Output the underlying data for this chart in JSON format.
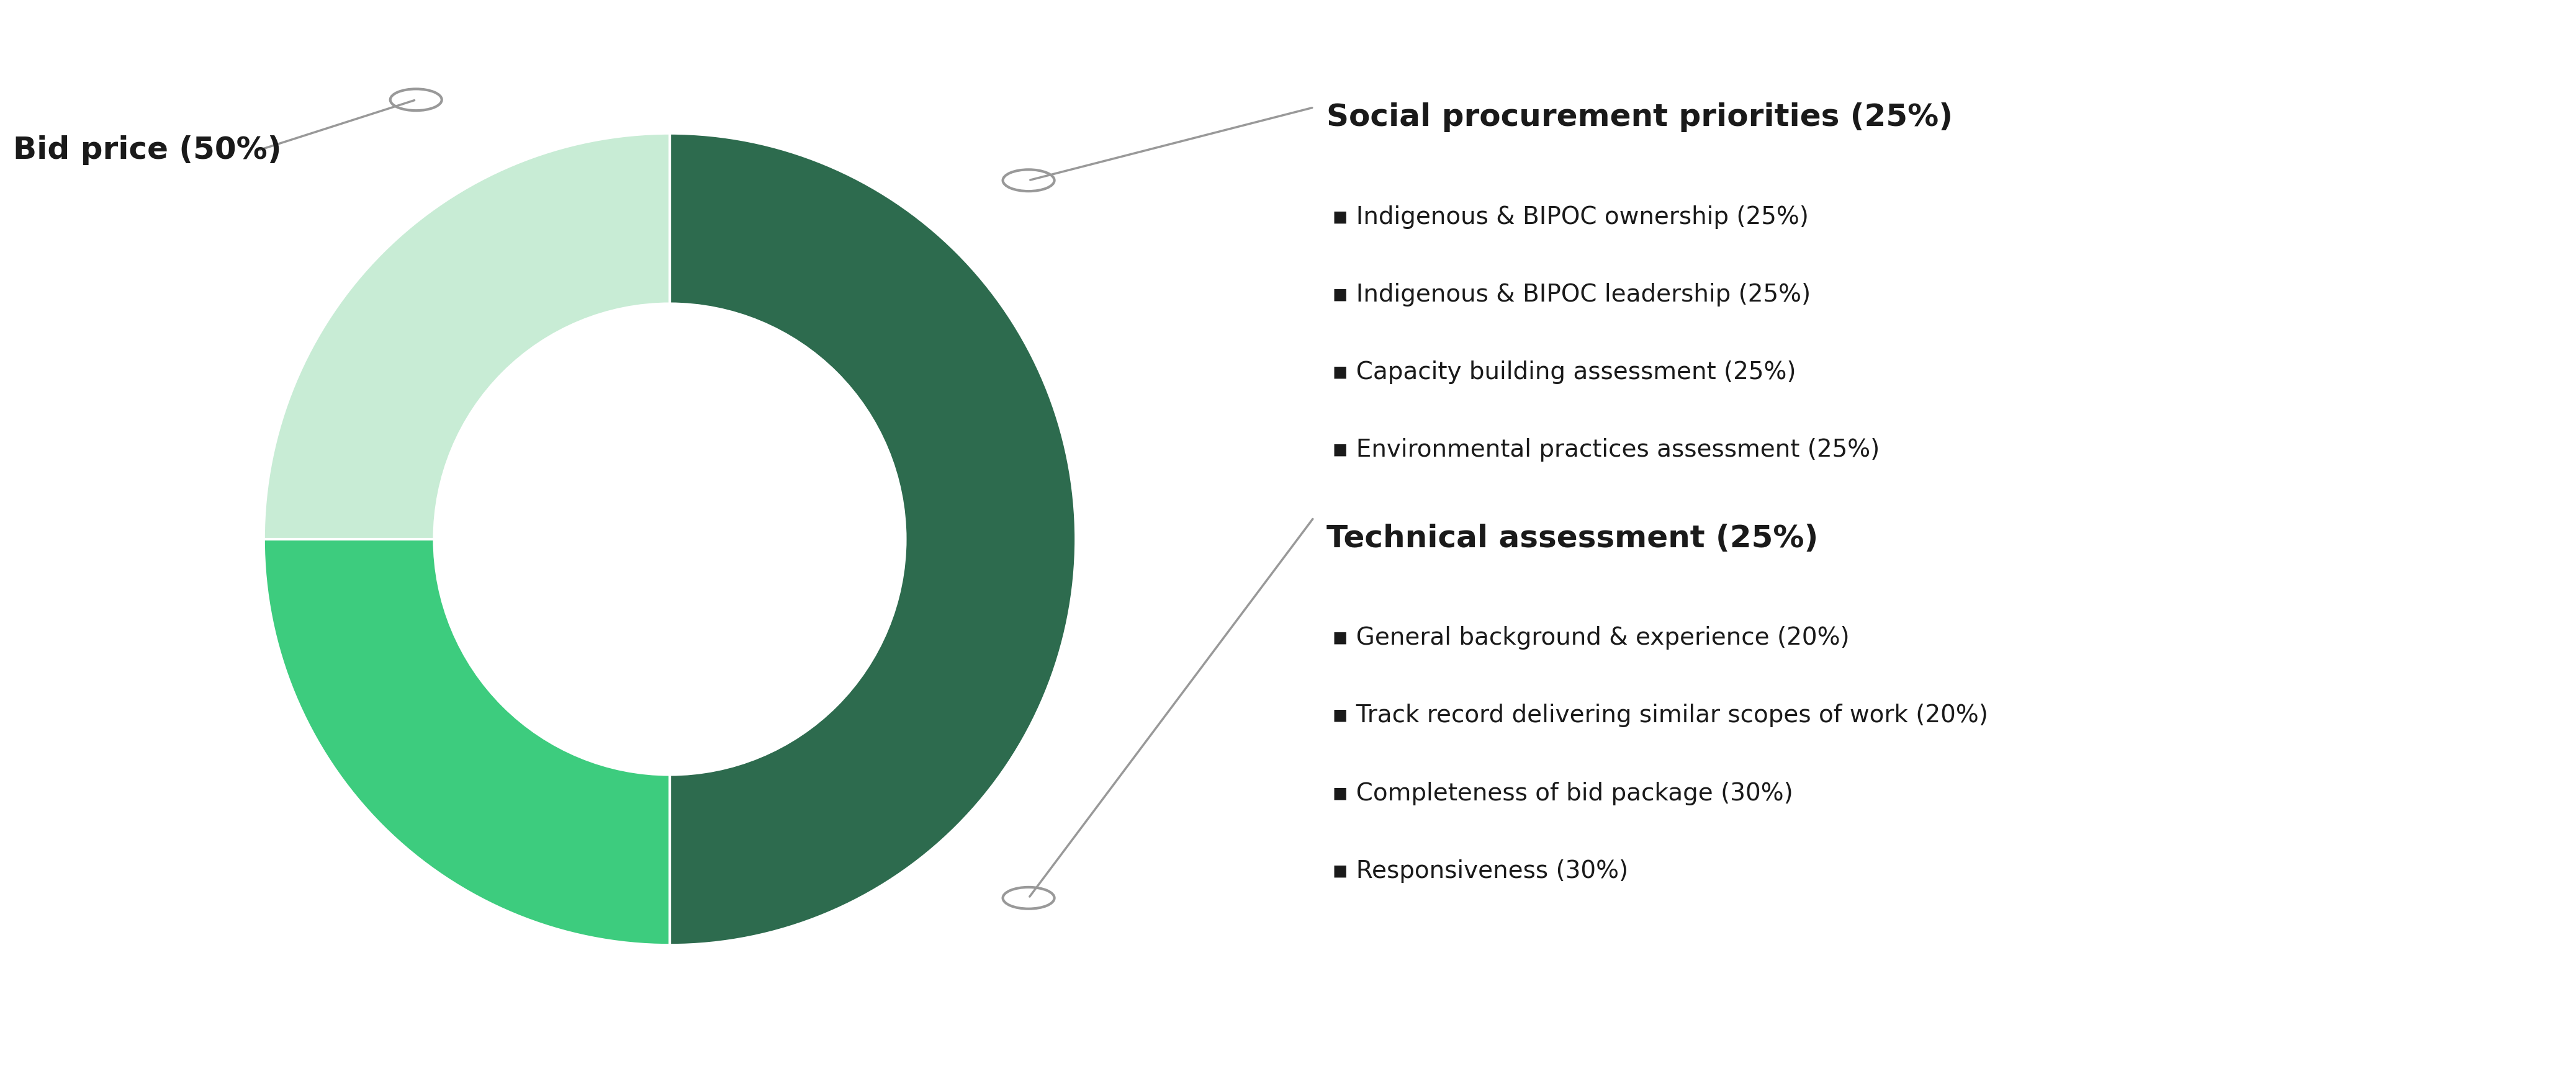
{
  "segments": [
    {
      "label": "Bid price (50%)",
      "value": 50,
      "color": "#2d6b4e"
    },
    {
      "label": "Social procurement priorities (25%)",
      "value": 25,
      "color": "#3dcc7e"
    },
    {
      "label": "Technical assessment (25%)",
      "value": 25,
      "color": "#c8ecd5"
    }
  ],
  "bid_price_label": "Bid price (50%)",
  "social_label": "Social procurement priorities (25%)",
  "social_bullets": [
    "▪ Indigenous & BIPOC ownership (25%)",
    "▪ Indigenous & BIPOC leadership (25%)",
    "▪ Capacity building assessment (25%)",
    "▪ Environmental practices assessment (25%)"
  ],
  "technical_label": "Technical assessment (25%)",
  "technical_bullets": [
    "▪ General background & experience (20%)",
    "▪ Track record delivering similar scopes of work (20%)",
    "▪ Completeness of bid package (30%)",
    "▪ Responsiveness (30%)"
  ],
  "background_color": "#ffffff",
  "annotation_color": "#999999",
  "text_color": "#1a1a1a",
  "title_fontsize": 36,
  "bullet_fontsize": 28,
  "start_angle": 90
}
